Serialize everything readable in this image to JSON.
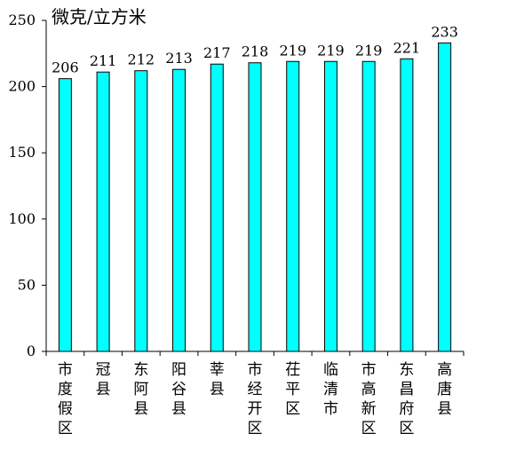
{
  "chart_data": {
    "type": "bar",
    "ylabel": "微克/立方米",
    "ylim": [
      0,
      250
    ],
    "yticks": [
      0,
      50,
      100,
      150,
      200,
      250
    ],
    "grid": false,
    "legend": "none",
    "bar_color": "#00ffff",
    "categories": [
      "市度假区",
      "冠县",
      "东阿县",
      "阳谷县",
      "莘县",
      "市经开区",
      "茌平区",
      "临清市",
      "市高新区",
      "东昌府区",
      "高唐县"
    ],
    "values": [
      206,
      211,
      212,
      213,
      217,
      218,
      219,
      219,
      219,
      221,
      233
    ]
  }
}
